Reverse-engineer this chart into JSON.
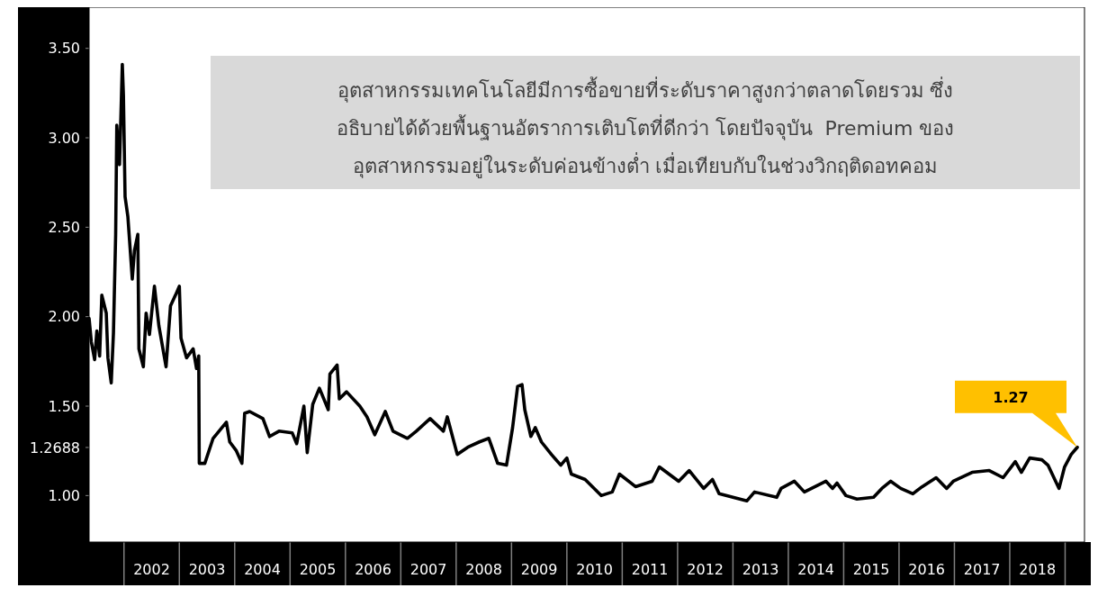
{
  "chart_data": {
    "type": "line",
    "x": [
      2001.37,
      2001.41,
      2001.47,
      2001.51,
      2001.56,
      2001.6,
      2001.68,
      2001.71,
      2001.77,
      2001.81,
      2001.85,
      2001.87,
      2001.92,
      2001.97,
      2001.99,
      2002.02,
      2002.07,
      2002.15,
      2002.19,
      2002.25,
      2002.27,
      2002.35,
      2002.4,
      2002.46,
      2002.55,
      2002.63,
      2002.76,
      2002.84,
      2002.93,
      2003.0,
      2003.03,
      2003.13,
      2003.25,
      2003.31,
      2003.35,
      2003.36,
      2003.46,
      2003.61,
      2003.85,
      2003.91,
      2004.03,
      2004.13,
      2004.18,
      2004.27,
      2004.51,
      2004.63,
      2004.8,
      2005.04,
      2005.12,
      2005.25,
      2005.31,
      2005.41,
      2005.53,
      2005.69,
      2005.72,
      2005.85,
      2005.89,
      2006.02,
      2006.26,
      2006.39,
      2006.53,
      2006.72,
      2006.86,
      2007.12,
      2007.28,
      2007.53,
      2007.77,
      2007.84,
      2008.02,
      2008.21,
      2008.42,
      2008.59,
      2008.75,
      2008.91,
      2009.02,
      2009.11,
      2009.19,
      2009.24,
      2009.35,
      2009.43,
      2009.54,
      2009.72,
      2009.89,
      2010.0,
      2010.08,
      2010.33,
      2010.62,
      2010.82,
      2010.95,
      2011.24,
      2011.54,
      2011.67,
      2012.02,
      2012.21,
      2012.47,
      2012.63,
      2012.75,
      2013.25,
      2013.39,
      2013.79,
      2013.87,
      2014.11,
      2014.29,
      2014.68,
      2014.8,
      2014.88,
      2015.04,
      2015.24,
      2015.54,
      2015.69,
      2015.85,
      2016.03,
      2016.25,
      2016.42,
      2016.67,
      2016.86,
      2016.98,
      2017.32,
      2017.63,
      2017.88,
      2018.1,
      2018.21,
      2018.36,
      2018.58,
      2018.69,
      2018.89,
      2018.99,
      2019.11,
      2019.22
    ],
    "series": [
      {
        "color": "#000000",
        "values": [
          1.99,
          1.86,
          1.76,
          1.92,
          1.78,
          2.12,
          2.02,
          1.77,
          1.63,
          1.91,
          2.46,
          3.07,
          2.85,
          3.41,
          3.24,
          2.67,
          2.56,
          2.21,
          2.37,
          2.46,
          1.82,
          1.72,
          2.02,
          1.9,
          2.17,
          1.95,
          1.72,
          2.06,
          2.12,
          2.17,
          1.88,
          1.77,
          1.82,
          1.71,
          1.78,
          1.18,
          1.18,
          1.32,
          1.41,
          1.3,
          1.25,
          1.18,
          1.46,
          1.47,
          1.43,
          1.33,
          1.36,
          1.35,
          1.29,
          1.5,
          1.24,
          1.51,
          1.6,
          1.48,
          1.68,
          1.73,
          1.54,
          1.58,
          1.5,
          1.44,
          1.34,
          1.47,
          1.36,
          1.32,
          1.36,
          1.43,
          1.36,
          1.44,
          1.23,
          1.27,
          1.3,
          1.32,
          1.18,
          1.17,
          1.38,
          1.61,
          1.62,
          1.48,
          1.33,
          1.38,
          1.3,
          1.23,
          1.17,
          1.21,
          1.12,
          1.09,
          1.0,
          1.02,
          1.12,
          1.05,
          1.08,
          1.16,
          1.08,
          1.14,
          1.04,
          1.09,
          1.01,
          0.97,
          1.02,
          0.99,
          1.04,
          1.08,
          1.02,
          1.08,
          1.04,
          1.07,
          1.0,
          0.98,
          0.99,
          1.04,
          1.08,
          1.04,
          1.01,
          1.05,
          1.1,
          1.04,
          1.08,
          1.13,
          1.14,
          1.1,
          1.19,
          1.13,
          1.21,
          1.2,
          1.17,
          1.04,
          1.16,
          1.23,
          1.27
        ]
      }
    ],
    "xlim": [
      2001.37,
      2019.35
    ],
    "xticks": [
      {
        "value": 2002,
        "label": null
      },
      {
        "value": 2002.5,
        "label": "2002"
      },
      {
        "value": 2003,
        "label": null
      },
      {
        "value": 2003.5,
        "label": "2003"
      },
      {
        "value": 2004,
        "label": null
      },
      {
        "value": 2004.5,
        "label": "2004"
      },
      {
        "value": 2005,
        "label": null
      },
      {
        "value": 2005.5,
        "label": "2005"
      },
      {
        "value": 2006,
        "label": null
      },
      {
        "value": 2006.5,
        "label": "2006"
      },
      {
        "value": 2007,
        "label": null
      },
      {
        "value": 2007.5,
        "label": "2007"
      },
      {
        "value": 2008,
        "label": null
      },
      {
        "value": 2008.5,
        "label": "2008"
      },
      {
        "value": 2009,
        "label": null
      },
      {
        "value": 2009.5,
        "label": "2009"
      },
      {
        "value": 2010,
        "label": null
      },
      {
        "value": 2010.5,
        "label": "2010"
      },
      {
        "value": 2011,
        "label": null
      },
      {
        "value": 2011.5,
        "label": "2011"
      },
      {
        "value": 2012,
        "label": null
      },
      {
        "value": 2012.5,
        "label": "2012"
      },
      {
        "value": 2013,
        "label": null
      },
      {
        "value": 2013.5,
        "label": "2013"
      },
      {
        "value": 2014,
        "label": null
      },
      {
        "value": 2014.5,
        "label": "2014"
      },
      {
        "value": 2015,
        "label": null
      },
      {
        "value": 2015.5,
        "label": "2015"
      },
      {
        "value": 2016,
        "label": null
      },
      {
        "value": 2016.5,
        "label": "2016"
      },
      {
        "value": 2017,
        "label": null
      },
      {
        "value": 2017.5,
        "label": "2017"
      },
      {
        "value": 2018,
        "label": null
      },
      {
        "value": 2018.5,
        "label": "2018"
      },
      {
        "value": 2019,
        "label": null
      }
    ],
    "ylim": [
      0.74,
      3.73
    ],
    "yticks": [
      {
        "value": 1,
        "label": "1.00"
      },
      1.2688,
      {
        "value": 1.5,
        "label": "1.50"
      },
      {
        "value": 2,
        "label": "2.00"
      },
      {
        "value": 2.5,
        "label": "2.50"
      },
      {
        "value": 3,
        "label": "3.00"
      },
      {
        "value": 3.5,
        "label": "3.50"
      }
    ],
    "grid": false,
    "line_style": "solid",
    "marker": "none",
    "annotations": [
      "อุตสาหกรรมเทคโนโลยีมีการซื้อขายที่ระดับราคาสูงกว่าตลาดโดยรวม ซึ่ง\nอธิบายได้ด้วยพื้นฐานอัตราการเติบโตที่ดีกว่า โดยปัจจุบัน  Premium ของ\nอุตสาหกรรมอยู่ในระดับค่อนข้างต่ำ เมื่อเทียบกับในช่วงวิกฤติดอทคอม",
      "1.27"
    ]
  }
}
